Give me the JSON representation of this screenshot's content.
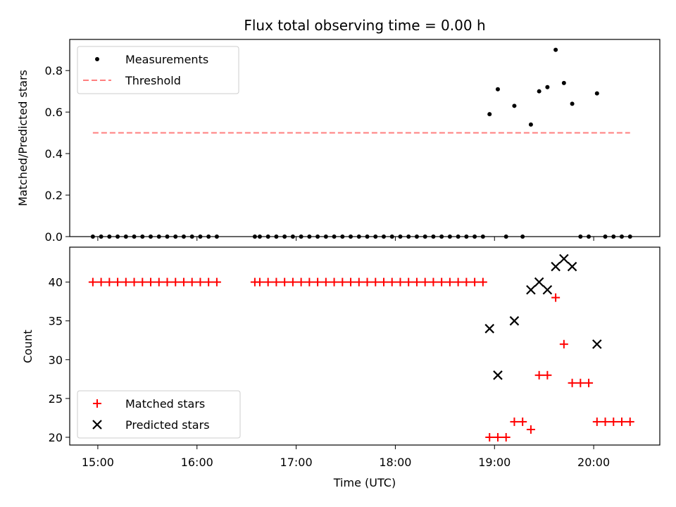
{
  "figure": {
    "title": "Flux total observing time = 0.00 h"
  },
  "colors": {
    "measurement": "#000000",
    "threshold": "#ff7f7f",
    "matched": "#ff0000",
    "predicted": "#000000"
  },
  "chart_data": [
    {
      "type": "scatter",
      "panel": "top",
      "title": "Flux total observing time = 0.00 h",
      "xlabel": "",
      "ylabel": "Matched/Predicted stars",
      "xlim": [
        "14:43",
        "20:40"
      ],
      "ylim": [
        0,
        0.95
      ],
      "yticks": [
        0.0,
        0.2,
        0.4,
        0.6,
        0.8
      ],
      "ytick_labels": [
        "0.0",
        "0.2",
        "0.4",
        "0.6",
        "0.8"
      ],
      "xticks": [
        "15:00",
        "16:00",
        "17:00",
        "18:00",
        "19:00",
        "20:00"
      ],
      "grid": false,
      "legend_position": "upper left",
      "series": [
        {
          "name": "Measurements",
          "marker": "dot",
          "x": [
            "14:57",
            "15:02",
            "15:07",
            "15:12",
            "15:17",
            "15:22",
            "15:27",
            "15:32",
            "15:37",
            "15:42",
            "15:47",
            "15:52",
            "15:57",
            "16:02",
            "16:07",
            "16:12",
            "16:35",
            "16:38",
            "16:43",
            "16:48",
            "16:53",
            "16:58",
            "17:03",
            "17:08",
            "17:13",
            "17:18",
            "17:23",
            "17:28",
            "17:33",
            "17:38",
            "17:43",
            "17:48",
            "17:53",
            "17:58",
            "18:03",
            "18:08",
            "18:13",
            "18:18",
            "18:23",
            "18:28",
            "18:33",
            "18:38",
            "18:43",
            "18:48",
            "18:53",
            "18:57",
            "19:02",
            "19:07",
            "19:12",
            "19:17",
            "19:22",
            "19:27",
            "19:32",
            "19:37",
            "19:42",
            "19:47",
            "19:52",
            "19:57",
            "20:02",
            "20:07",
            "20:12",
            "20:17",
            "20:22"
          ],
          "y": [
            0,
            0,
            0,
            0,
            0,
            0,
            0,
            0,
            0,
            0,
            0,
            0,
            0,
            0,
            0,
            0,
            0,
            0,
            0,
            0,
            0,
            0,
            0,
            0,
            0,
            0,
            0,
            0,
            0,
            0,
            0,
            0,
            0,
            0,
            0,
            0,
            0,
            0,
            0,
            0,
            0,
            0,
            0,
            0,
            0,
            0.59,
            0.71,
            0,
            0.63,
            0,
            0.54,
            0.7,
            0.72,
            0.9,
            0.74,
            0.64,
            0,
            0,
            0.69,
            0,
            0,
            0,
            0
          ]
        },
        {
          "name": "Threshold",
          "style": "dashed",
          "x": [
            "14:57",
            "20:22"
          ],
          "y": [
            0.5,
            0.5
          ]
        }
      ]
    },
    {
      "type": "scatter",
      "panel": "bottom",
      "xlabel": "Time (UTC)",
      "ylabel": "Count",
      "xlim": [
        "14:43",
        "20:40"
      ],
      "ylim": [
        19,
        44.5
      ],
      "yticks": [
        20,
        25,
        30,
        35,
        40
      ],
      "ytick_labels": [
        "20",
        "25",
        "30",
        "35",
        "40"
      ],
      "xticks": [
        "15:00",
        "16:00",
        "17:00",
        "18:00",
        "19:00",
        "20:00"
      ],
      "xtick_labels": [
        "15:00",
        "16:00",
        "17:00",
        "18:00",
        "19:00",
        "20:00"
      ],
      "grid": false,
      "legend_position": "lower left",
      "series": [
        {
          "name": "Matched stars",
          "marker": "plus",
          "x": [
            "14:57",
            "15:02",
            "15:07",
            "15:12",
            "15:17",
            "15:22",
            "15:27",
            "15:32",
            "15:37",
            "15:42",
            "15:47",
            "15:52",
            "15:57",
            "16:02",
            "16:07",
            "16:12",
            "16:35",
            "16:38",
            "16:43",
            "16:48",
            "16:53",
            "16:58",
            "17:03",
            "17:08",
            "17:13",
            "17:18",
            "17:23",
            "17:28",
            "17:33",
            "17:38",
            "17:43",
            "17:48",
            "17:53",
            "17:58",
            "18:03",
            "18:08",
            "18:13",
            "18:18",
            "18:23",
            "18:28",
            "18:33",
            "18:38",
            "18:43",
            "18:48",
            "18:53",
            "18:57",
            "19:02",
            "19:07",
            "19:12",
            "19:17",
            "19:22",
            "19:27",
            "19:32",
            "19:37",
            "19:42",
            "19:47",
            "19:52",
            "19:57",
            "20:02",
            "20:07",
            "20:12",
            "20:17",
            "20:22"
          ],
          "y": [
            40,
            40,
            40,
            40,
            40,
            40,
            40,
            40,
            40,
            40,
            40,
            40,
            40,
            40,
            40,
            40,
            40,
            40,
            40,
            40,
            40,
            40,
            40,
            40,
            40,
            40,
            40,
            40,
            40,
            40,
            40,
            40,
            40,
            40,
            40,
            40,
            40,
            40,
            40,
            40,
            40,
            40,
            40,
            40,
            40,
            20,
            20,
            20,
            22,
            22,
            21,
            28,
            28,
            38,
            32,
            27,
            27,
            27,
            22,
            22,
            22,
            22,
            22
          ]
        },
        {
          "name": "Predicted stars",
          "marker": "x",
          "x": [
            "18:57",
            "19:02",
            "19:12",
            "19:22",
            "19:27",
            "19:32",
            "19:37",
            "19:42",
            "19:47",
            "20:02"
          ],
          "y": [
            34,
            28,
            35,
            39,
            40,
            39,
            42,
            43,
            42,
            32
          ]
        }
      ]
    }
  ]
}
